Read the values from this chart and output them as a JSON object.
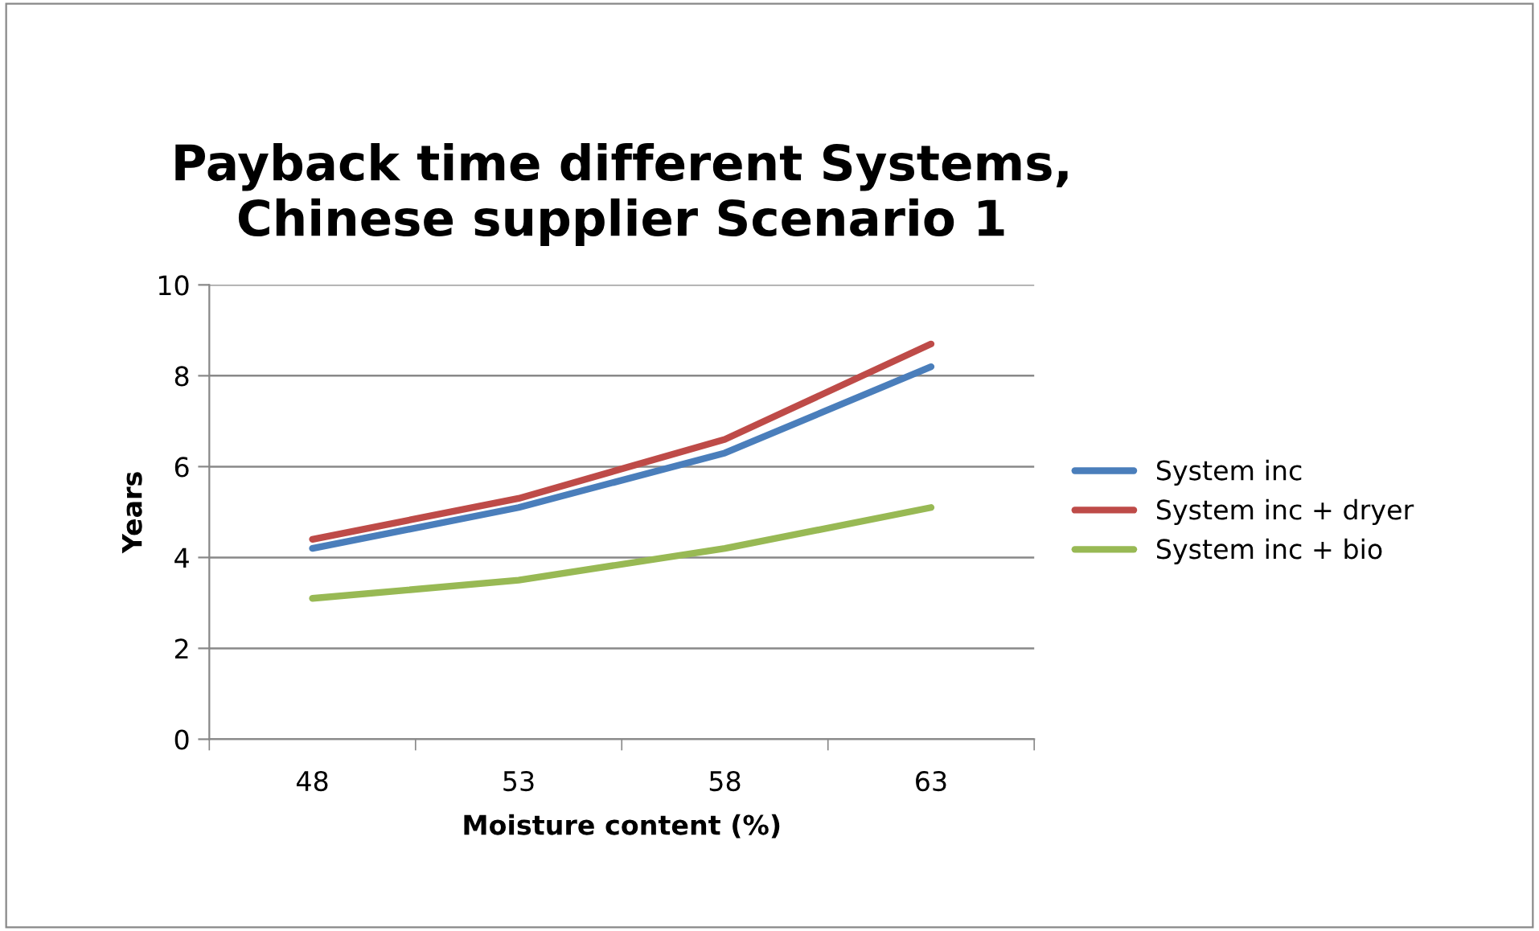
{
  "chart_data": {
    "type": "line",
    "title": "Payback time different Systems,\nChinese supplier Scenario 1",
    "xlabel": "Moisture content (%)",
    "ylabel": "Years",
    "categories": [
      "48",
      "53",
      "58",
      "63"
    ],
    "series": [
      {
        "name": "System inc",
        "color": "#4a7ebb",
        "values": [
          4.2,
          5.1,
          6.3,
          8.2
        ]
      },
      {
        "name": "System inc + dryer",
        "color": "#be4b48",
        "values": [
          4.4,
          5.3,
          6.6,
          8.7
        ]
      },
      {
        "name": "System inc + bio",
        "color": "#98b954",
        "values": [
          3.1,
          3.5,
          4.2,
          5.1
        ]
      }
    ],
    "ylim": [
      0,
      10
    ],
    "yticks": [
      0,
      2,
      4,
      6,
      8,
      10
    ],
    "grid": "y",
    "legend": "right",
    "marker": "none",
    "line_style": "solid"
  }
}
